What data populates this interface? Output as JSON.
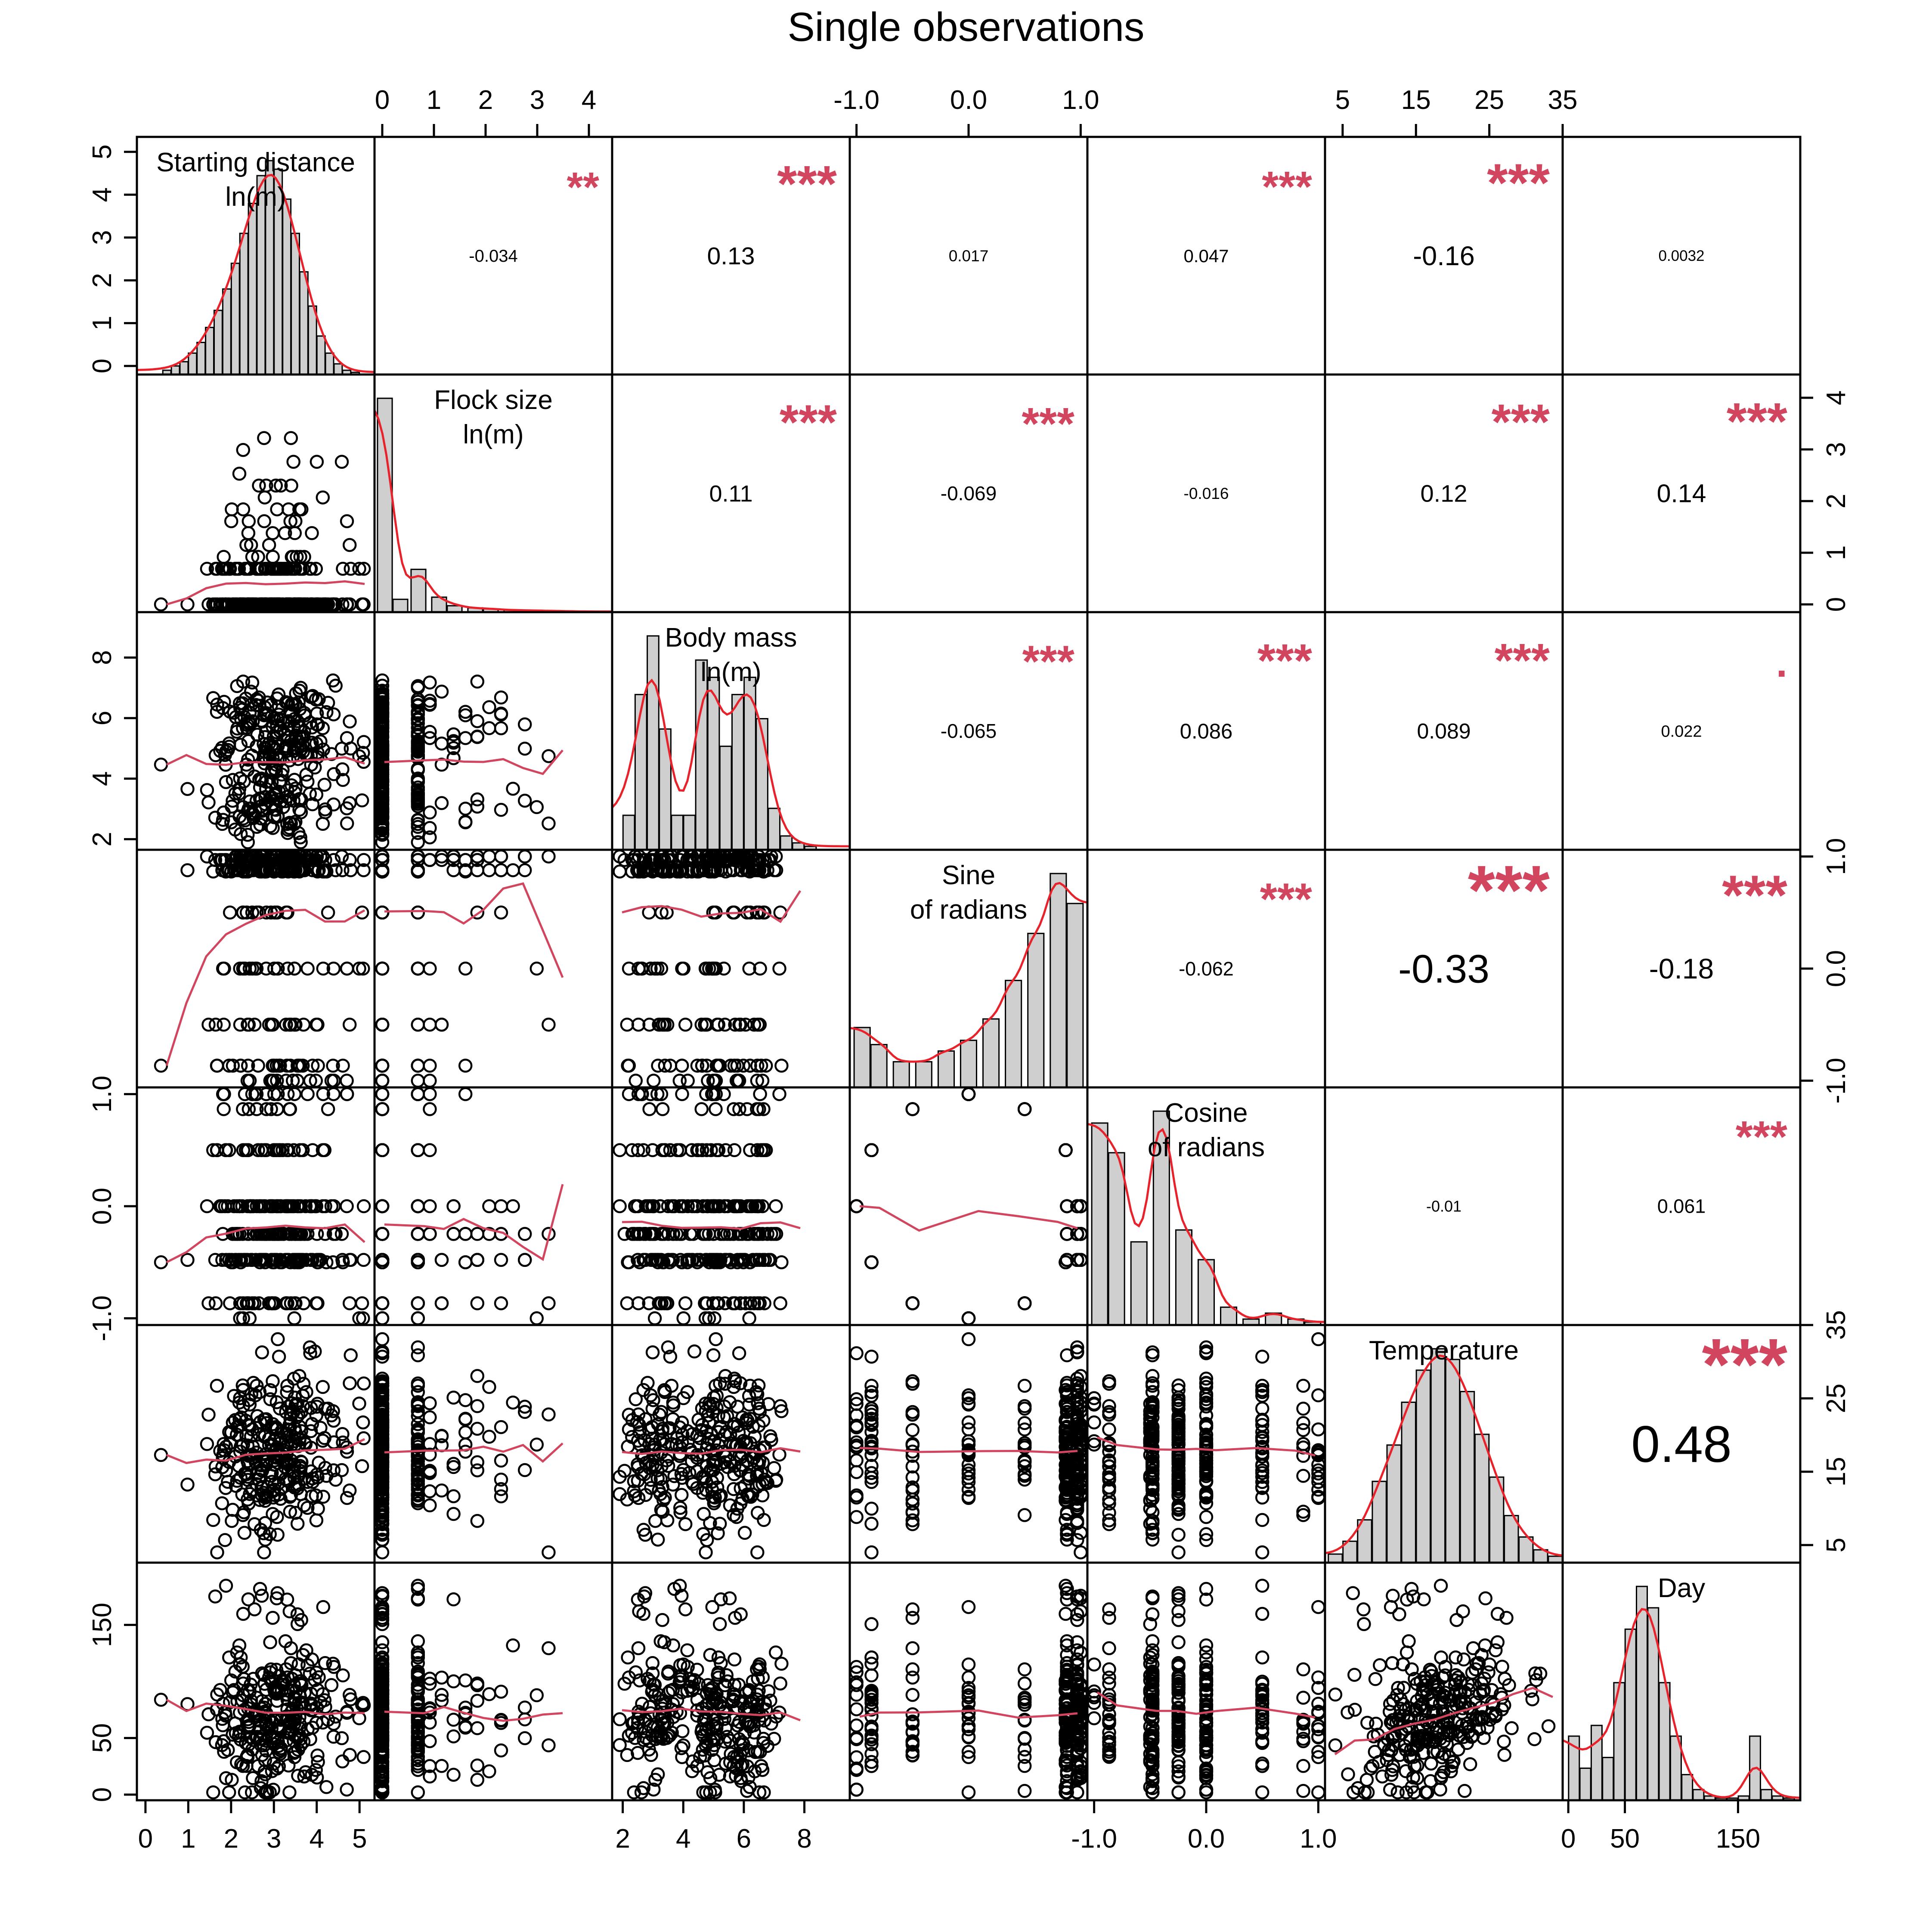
{
  "chart_data": {
    "type": "scatter",
    "title": "Single observations",
    "variables": [
      {
        "name": "Starting distance",
        "unit": "ln(m)",
        "range": [
          -0.2,
          5.35
        ],
        "ticks": [
          0,
          1,
          2,
          3,
          4,
          5
        ]
      },
      {
        "name": "Flock size",
        "unit": "ln(m)",
        "range": [
          -0.15,
          4.45
        ],
        "ticks": [
          0,
          1,
          2,
          3,
          4
        ]
      },
      {
        "name": "Body mass",
        "unit": "ln(m)",
        "range": [
          1.65,
          9.5
        ],
        "ticks": [
          2,
          4,
          6,
          8
        ]
      },
      {
        "name": "Sine",
        "unit": "of radians",
        "range": [
          -1.06,
          1.06
        ],
        "ticks": [
          -1.0,
          0.0,
          1.0
        ],
        "tick_labels": [
          "-1.0",
          "0.0",
          "1.0"
        ]
      },
      {
        "name": "Cosine",
        "unit": "of radians",
        "range": [
          -1.06,
          1.06
        ],
        "ticks": [
          -1.0,
          0.0,
          1.0
        ],
        "tick_labels": [
          "-1.0",
          "0.0",
          "1.0"
        ]
      },
      {
        "name": "Temperature",
        "unit": "",
        "range": [
          2.6,
          35.0
        ],
        "ticks": [
          5,
          15,
          25,
          35
        ]
      },
      {
        "name": "Day",
        "unit": "",
        "range": [
          -5,
          205
        ],
        "ticks": [
          0,
          50,
          150
        ]
      }
    ],
    "correlations": [
      {
        "pair": [
          "Starting distance",
          "Flock size"
        ],
        "r": "-0.034",
        "stars": "**"
      },
      {
        "pair": [
          "Starting distance",
          "Body mass"
        ],
        "r": "0.13",
        "stars": "***"
      },
      {
        "pair": [
          "Starting distance",
          "Sine"
        ],
        "r": "0.017",
        "stars": ""
      },
      {
        "pair": [
          "Starting distance",
          "Cosine"
        ],
        "r": "0.047",
        "stars": "***"
      },
      {
        "pair": [
          "Starting distance",
          "Temperature"
        ],
        "r": "-0.16",
        "stars": "***"
      },
      {
        "pair": [
          "Starting distance",
          "Day"
        ],
        "r": "0.0032",
        "stars": ""
      },
      {
        "pair": [
          "Flock size",
          "Body mass"
        ],
        "r": "0.11",
        "stars": "***"
      },
      {
        "pair": [
          "Flock size",
          "Sine"
        ],
        "r": "-0.069",
        "stars": "***"
      },
      {
        "pair": [
          "Flock size",
          "Cosine"
        ],
        "r": "-0.016",
        "stars": ""
      },
      {
        "pair": [
          "Flock size",
          "Temperature"
        ],
        "r": "0.12",
        "stars": "***"
      },
      {
        "pair": [
          "Flock size",
          "Day"
        ],
        "r": "0.14",
        "stars": "***"
      },
      {
        "pair": [
          "Body mass",
          "Sine"
        ],
        "r": "-0.065",
        "stars": "***"
      },
      {
        "pair": [
          "Body mass",
          "Cosine"
        ],
        "r": "0.086",
        "stars": "***"
      },
      {
        "pair": [
          "Body mass",
          "Temperature"
        ],
        "r": "0.089",
        "stars": "***"
      },
      {
        "pair": [
          "Body mass",
          "Day"
        ],
        "r": "0.022",
        "stars": "."
      },
      {
        "pair": [
          "Sine",
          "Cosine"
        ],
        "r": "-0.062",
        "stars": "***"
      },
      {
        "pair": [
          "Sine",
          "Temperature"
        ],
        "r": "-0.33",
        "stars": "***"
      },
      {
        "pair": [
          "Sine",
          "Day"
        ],
        "r": "-0.18",
        "stars": "***"
      },
      {
        "pair": [
          "Cosine",
          "Temperature"
        ],
        "r": "-0.01",
        "stars": ""
      },
      {
        "pair": [
          "Cosine",
          "Day"
        ],
        "r": "0.061",
        "stars": "***"
      },
      {
        "pair": [
          "Temperature",
          "Day"
        ],
        "r": "0.48",
        "stars": "***"
      }
    ],
    "histograms": [
      {
        "variable": "Starting distance",
        "bins": [
          0.5,
          0.7,
          0.9,
          1.1,
          1.3,
          1.5,
          1.7,
          1.9,
          2.1,
          2.3,
          2.5,
          2.7,
          2.9,
          3.1,
          3.3,
          3.5,
          3.7,
          3.9,
          4.1,
          4.3,
          4.5,
          4.7,
          4.9
        ],
        "density": [
          0.02,
          0.04,
          0.06,
          0.1,
          0.15,
          0.22,
          0.3,
          0.4,
          0.52,
          0.66,
          0.8,
          0.93,
          1.0,
          0.96,
          0.82,
          0.66,
          0.48,
          0.32,
          0.18,
          0.1,
          0.05,
          0.02,
          0.01
        ]
      },
      {
        "variable": "Flock size",
        "bins": [
          0.05,
          0.35,
          0.7,
          1.1,
          1.4,
          1.8,
          2.1,
          2.5,
          2.9,
          3.3,
          3.7,
          4.1
        ],
        "density": [
          1.0,
          0.06,
          0.2,
          0.07,
          0.03,
          0.02,
          0.015,
          0.01,
          0.008,
          0.006,
          0.004,
          0.003
        ]
      },
      {
        "variable": "Body mass",
        "bins": [
          2.2,
          2.6,
          3.0,
          3.4,
          3.8,
          4.2,
          4.6,
          5.0,
          5.4,
          5.8,
          6.2,
          6.6,
          7.0,
          7.4,
          7.8,
          8.2
        ],
        "density": [
          0.1,
          0.45,
          0.62,
          0.35,
          0.1,
          0.1,
          0.55,
          0.5,
          0.3,
          0.45,
          0.5,
          0.38,
          0.12,
          0.04,
          0.02,
          0.01
        ]
      },
      {
        "variable": "Sine",
        "bins": [
          -0.95,
          -0.8,
          -0.6,
          -0.4,
          -0.2,
          0.0,
          0.2,
          0.4,
          0.6,
          0.8,
          0.95
        ],
        "density": [
          0.28,
          0.2,
          0.12,
          0.12,
          0.17,
          0.22,
          0.32,
          0.5,
          0.72,
          1.0,
          0.86
        ]
      },
      {
        "variable": "Cosine",
        "bins": [
          -0.95,
          -0.8,
          -0.6,
          -0.4,
          -0.2,
          0.0,
          0.2,
          0.4,
          0.6,
          0.8,
          0.95
        ],
        "density": [
          0.68,
          0.58,
          0.28,
          0.72,
          0.32,
          0.22,
          0.06,
          0.02,
          0.04,
          0.02,
          0.01
        ]
      },
      {
        "variable": "Temperature",
        "bins": [
          4,
          6,
          8,
          10,
          12,
          14,
          16,
          18,
          20,
          22,
          24,
          26,
          28,
          30,
          32,
          34
        ],
        "density": [
          0.04,
          0.1,
          0.2,
          0.38,
          0.55,
          0.75,
          0.9,
          1.0,
          0.95,
          0.8,
          0.6,
          0.4,
          0.22,
          0.12,
          0.06,
          0.03
        ]
      },
      {
        "variable": "Day",
        "bins": [
          5,
          15,
          25,
          35,
          45,
          55,
          65,
          75,
          85,
          95,
          105,
          115,
          125,
          135,
          145,
          155,
          165,
          175,
          185,
          195
        ],
        "density": [
          0.3,
          0.15,
          0.35,
          0.2,
          0.55,
          0.8,
          1.0,
          0.9,
          0.55,
          0.3,
          0.12,
          0.05,
          0.02,
          0.01,
          0.01,
          0.02,
          0.3,
          0.05,
          0.02,
          0.01
        ]
      }
    ]
  }
}
